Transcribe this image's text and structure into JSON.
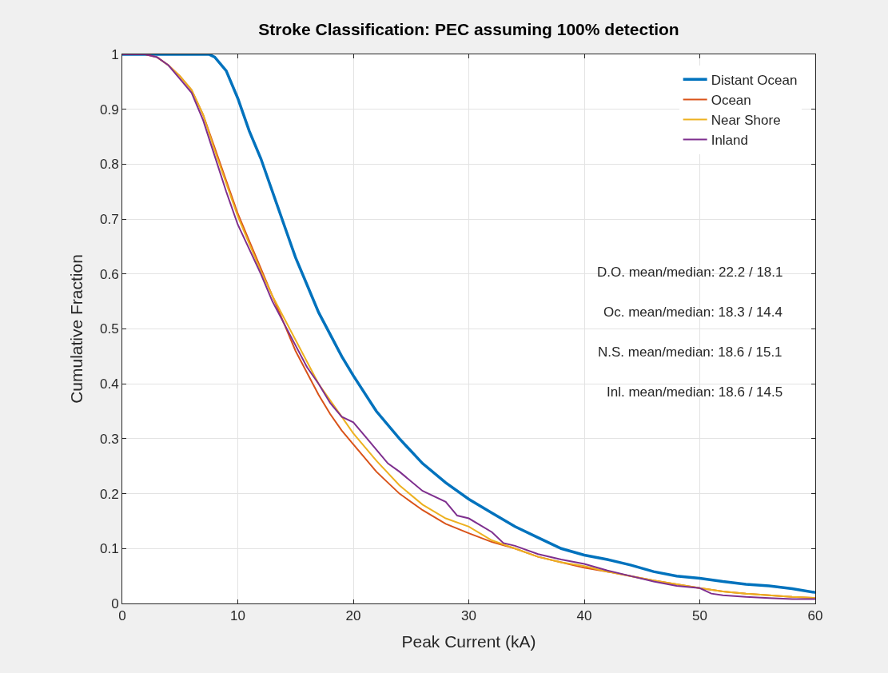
{
  "chart_data": {
    "type": "line",
    "title": "Stroke Classification: PEC assuming 100% detection",
    "xlabel": "Peak Current (kA)",
    "ylabel": "Cumulative Fraction",
    "xlim": [
      0,
      60
    ],
    "xticks": [
      0,
      10,
      20,
      30,
      40,
      50,
      60
    ],
    "ylim": [
      0,
      1
    ],
    "yticks": [
      0,
      0.1,
      0.2,
      0.3,
      0.4,
      0.5,
      0.6,
      0.7,
      0.8,
      0.9,
      1
    ],
    "grid": true,
    "legend": "top right",
    "marker": "none",
    "line_style": "solid",
    "annotations": [
      "D.O. mean/median: 22.2 / 18.1",
      "Oc. mean/median: 18.3 / 14.4",
      "N.S. mean/median: 18.6 / 15.1",
      "Inl. mean/median: 18.6 / 14.5"
    ],
    "series": [
      {
        "name": "Distant Ocean",
        "color": "#0072bd",
        "x": [
          0,
          4,
          7.5,
          8,
          9,
          10,
          11,
          12,
          13,
          14,
          15,
          16,
          17,
          18,
          19,
          20,
          22,
          24,
          26,
          28,
          30,
          32,
          34,
          36,
          38,
          40,
          42,
          44,
          46,
          48,
          50,
          52,
          54,
          56,
          58,
          60
        ],
        "values": [
          1,
          1,
          1,
          0.995,
          0.97,
          0.92,
          0.86,
          0.81,
          0.75,
          0.69,
          0.63,
          0.58,
          0.53,
          0.49,
          0.45,
          0.415,
          0.35,
          0.3,
          0.255,
          0.22,
          0.19,
          0.165,
          0.14,
          0.12,
          0.1,
          0.088,
          0.08,
          0.07,
          0.058,
          0.05,
          0.046,
          0.04,
          0.035,
          0.032,
          0.027,
          0.02
        ]
      },
      {
        "name": "Ocean",
        "color": "#d95319",
        "x": [
          0,
          2,
          3,
          4,
          5,
          6,
          7,
          8,
          9,
          10,
          11,
          12,
          13,
          14,
          15,
          16,
          17,
          18,
          19,
          20,
          22,
          24,
          26,
          28,
          30,
          32,
          34,
          36,
          38,
          40,
          42,
          44,
          46,
          48,
          50,
          52,
          54,
          56,
          58,
          60
        ],
        "values": [
          1,
          1,
          0.995,
          0.98,
          0.96,
          0.935,
          0.89,
          0.83,
          0.77,
          0.71,
          0.66,
          0.61,
          0.56,
          0.51,
          0.46,
          0.42,
          0.38,
          0.345,
          0.315,
          0.29,
          0.24,
          0.2,
          0.17,
          0.145,
          0.128,
          0.112,
          0.1,
          0.085,
          0.075,
          0.065,
          0.058,
          0.05,
          0.042,
          0.035,
          0.028,
          0.022,
          0.018,
          0.015,
          0.012,
          0.01
        ]
      },
      {
        "name": "Near Shore",
        "color": "#edb120",
        "x": [
          3,
          4,
          5,
          6,
          7,
          8,
          9,
          10,
          11,
          12,
          13,
          14,
          15,
          16,
          17,
          18,
          19,
          20,
          22,
          24,
          26,
          28,
          30,
          32,
          34,
          36,
          38,
          40,
          42,
          44,
          46,
          48,
          50,
          52,
          54,
          56,
          58,
          60
        ],
        "values": [
          0.995,
          0.98,
          0.96,
          0.935,
          0.89,
          0.825,
          0.765,
          0.705,
          0.655,
          0.605,
          0.56,
          0.52,
          0.48,
          0.44,
          0.4,
          0.37,
          0.34,
          0.31,
          0.26,
          0.215,
          0.18,
          0.155,
          0.14,
          0.115,
          0.1,
          0.085,
          0.075,
          0.068,
          0.058,
          0.05,
          0.042,
          0.035,
          0.028,
          0.022,
          0.018,
          0.015,
          0.012,
          0.01
        ]
      },
      {
        "name": "Inland",
        "color": "#7e2f8e",
        "x": [
          0,
          2,
          3,
          4,
          5,
          6,
          7,
          8,
          9,
          10,
          11,
          12,
          13,
          14,
          15,
          16,
          17,
          18,
          19,
          20,
          21,
          22,
          23,
          24,
          26,
          28,
          29,
          30,
          32,
          33,
          34,
          36,
          38,
          40,
          42,
          44,
          46,
          48,
          50,
          51,
          52,
          54,
          56,
          58,
          60
        ],
        "values": [
          1,
          1,
          0.995,
          0.98,
          0.955,
          0.93,
          0.88,
          0.815,
          0.75,
          0.69,
          0.645,
          0.6,
          0.55,
          0.51,
          0.47,
          0.43,
          0.4,
          0.365,
          0.34,
          0.33,
          0.305,
          0.28,
          0.255,
          0.24,
          0.205,
          0.185,
          0.16,
          0.155,
          0.13,
          0.11,
          0.105,
          0.09,
          0.08,
          0.072,
          0.06,
          0.05,
          0.04,
          0.032,
          0.028,
          0.018,
          0.015,
          0.012,
          0.01,
          0.008,
          0.008
        ]
      }
    ]
  }
}
